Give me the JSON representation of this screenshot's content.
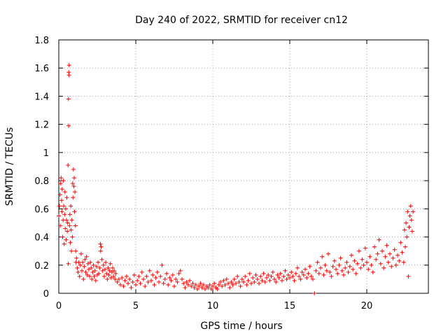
{
  "chart_data": {
    "type": "scatter",
    "title": "Day 240 of 2022, SRMTID for receiver cn12",
    "xlabel": "GPS time / hours",
    "ylabel": "SRMTID / TECUs",
    "xlim": [
      0,
      24
    ],
    "ylim": [
      0,
      1.8
    ],
    "xticks": [
      0,
      5,
      10,
      15,
      20
    ],
    "yticks": [
      0,
      0.2,
      0.4,
      0.6,
      0.8,
      1,
      1.2,
      1.4,
      1.6,
      1.8
    ],
    "xtick_labels": [
      "0",
      "5",
      "10",
      "15",
      "20"
    ],
    "ytick_labels": [
      "0",
      "0.2",
      "0.4",
      "0.6",
      "0.8",
      "1",
      "1.2",
      "1.4",
      "1.6",
      "1.8"
    ],
    "grid": true,
    "marker": "+",
    "color": "#ff0000",
    "series": [
      {
        "name": "SRMTID",
        "points": [
          [
            0.0,
            0.55
          ],
          [
            0.05,
            0.62
          ],
          [
            0.08,
            0.7
          ],
          [
            0.1,
            0.48
          ],
          [
            0.12,
            0.78
          ],
          [
            0.15,
            0.82
          ],
          [
            0.18,
            0.66
          ],
          [
            0.2,
            0.58
          ],
          [
            0.22,
            0.74
          ],
          [
            0.25,
            0.4
          ],
          [
            0.28,
            0.52
          ],
          [
            0.3,
            0.8
          ],
          [
            0.32,
            0.62
          ],
          [
            0.35,
            0.35
          ],
          [
            0.38,
            0.56
          ],
          [
            0.4,
            0.72
          ],
          [
            0.42,
            0.46
          ],
          [
            0.45,
            0.6
          ],
          [
            0.48,
            0.38
          ],
          [
            0.5,
            0.52
          ],
          [
            0.52,
            0.68
          ],
          [
            0.55,
            0.44
          ],
          [
            0.58,
            0.5
          ],
          [
            0.6,
            0.91
          ],
          [
            0.62,
            0.21
          ],
          [
            0.63,
            1.38
          ],
          [
            0.64,
            1.19
          ],
          [
            0.65,
            1.57
          ],
          [
            0.66,
            1.55
          ],
          [
            0.67,
            1.62
          ],
          [
            0.7,
            0.48
          ],
          [
            0.72,
            0.56
          ],
          [
            0.75,
            0.36
          ],
          [
            0.78,
            0.62
          ],
          [
            0.8,
            0.45
          ],
          [
            0.82,
            0.3
          ],
          [
            0.85,
            0.52
          ],
          [
            0.88,
            0.4
          ],
          [
            0.9,
            0.78
          ],
          [
            0.92,
            0.68
          ],
          [
            0.95,
            0.88
          ],
          [
            0.98,
            0.76
          ],
          [
            1.0,
            0.82
          ],
          [
            1.02,
            0.58
          ],
          [
            1.05,
            0.72
          ],
          [
            1.08,
            0.48
          ],
          [
            1.1,
            0.3
          ],
          [
            1.12,
            0.22
          ],
          [
            1.15,
            0.25
          ],
          [
            1.2,
            0.18
          ],
          [
            1.25,
            0.15
          ],
          [
            1.3,
            0.22
          ],
          [
            1.35,
            0.12
          ],
          [
            1.4,
            0.2
          ],
          [
            1.45,
            0.28
          ],
          [
            1.5,
            0.16
          ],
          [
            1.55,
            0.22
          ],
          [
            1.6,
            0.1
          ],
          [
            1.65,
            0.19
          ],
          [
            1.7,
            0.24
          ],
          [
            1.75,
            0.15
          ],
          [
            1.8,
            0.26
          ],
          [
            1.85,
            0.13
          ],
          [
            1.9,
            0.21
          ],
          [
            1.95,
            0.17
          ],
          [
            2.0,
            0.12
          ],
          [
            2.05,
            0.22
          ],
          [
            2.1,
            0.18
          ],
          [
            2.15,
            0.1
          ],
          [
            2.2,
            0.15
          ],
          [
            2.25,
            0.2
          ],
          [
            2.3,
            0.12
          ],
          [
            2.35,
            0.16
          ],
          [
            2.4,
            0.09
          ],
          [
            2.45,
            0.19
          ],
          [
            2.5,
            0.13
          ],
          [
            2.55,
            0.22
          ],
          [
            2.6,
            0.14
          ],
          [
            2.65,
            0.18
          ],
          [
            2.7,
            0.35
          ],
          [
            2.72,
            0.3
          ],
          [
            2.75,
            0.33
          ],
          [
            2.8,
            0.24
          ],
          [
            2.85,
            0.16
          ],
          [
            2.9,
            0.2
          ],
          [
            2.95,
            0.12
          ],
          [
            3.0,
            0.17
          ],
          [
            3.05,
            0.22
          ],
          [
            3.1,
            0.14
          ],
          [
            3.15,
            0.1
          ],
          [
            3.2,
            0.18
          ],
          [
            3.25,
            0.13
          ],
          [
            3.3,
            0.16
          ],
          [
            3.35,
            0.21
          ],
          [
            3.4,
            0.11
          ],
          [
            3.45,
            0.15
          ],
          [
            3.5,
            0.18
          ],
          [
            3.55,
            0.12
          ],
          [
            3.6,
            0.16
          ],
          [
            3.65,
            0.1
          ],
          [
            3.7,
            0.14
          ],
          [
            3.8,
            0.08
          ],
          [
            3.9,
            0.1
          ],
          [
            4.0,
            0.06
          ],
          [
            4.1,
            0.11
          ],
          [
            4.2,
            0.05
          ],
          [
            4.3,
            0.09
          ],
          [
            4.4,
            0.12
          ],
          [
            4.5,
            0.07
          ],
          [
            4.6,
            0.1
          ],
          [
            4.7,
            0.04
          ],
          [
            4.8,
            0.08
          ],
          [
            4.9,
            0.13
          ],
          [
            5.0,
            0.06
          ],
          [
            5.1,
            0.09
          ],
          [
            5.2,
            0.12
          ],
          [
            5.3,
            0.07
          ],
          [
            5.4,
            0.15
          ],
          [
            5.5,
            0.1
          ],
          [
            5.6,
            0.05
          ],
          [
            5.7,
            0.12
          ],
          [
            5.8,
            0.08
          ],
          [
            5.9,
            0.16
          ],
          [
            6.0,
            0.09
          ],
          [
            6.1,
            0.13
          ],
          [
            6.2,
            0.06
          ],
          [
            6.3,
            0.11
          ],
          [
            6.4,
            0.15
          ],
          [
            6.5,
            0.08
          ],
          [
            6.6,
            0.12
          ],
          [
            6.7,
            0.2
          ],
          [
            6.8,
            0.07
          ],
          [
            6.9,
            0.1
          ],
          [
            7.0,
            0.14
          ],
          [
            7.1,
            0.06
          ],
          [
            7.2,
            0.11
          ],
          [
            7.3,
            0.09
          ],
          [
            7.4,
            0.13
          ],
          [
            7.5,
            0.05
          ],
          [
            7.6,
            0.1
          ],
          [
            7.7,
            0.08
          ],
          [
            7.8,
            0.14
          ],
          [
            7.9,
            0.16
          ],
          [
            8.0,
            0.1
          ],
          [
            8.1,
            0.07
          ],
          [
            8.2,
            0.04
          ],
          [
            8.3,
            0.08
          ],
          [
            8.4,
            0.06
          ],
          [
            8.5,
            0.09
          ],
          [
            8.6,
            0.05
          ],
          [
            8.7,
            0.07
          ],
          [
            8.8,
            0.04
          ],
          [
            8.9,
            0.06
          ],
          [
            9.0,
            0.03
          ],
          [
            9.1,
            0.05
          ],
          [
            9.2,
            0.07
          ],
          [
            9.3,
            0.04
          ],
          [
            9.4,
            0.06
          ],
          [
            9.5,
            0.03
          ],
          [
            9.6,
            0.05
          ],
          [
            9.7,
            0.04
          ],
          [
            9.8,
            0.06
          ],
          [
            9.9,
            0.03
          ],
          [
            10.0,
            0.05
          ],
          [
            10.1,
            0.07
          ],
          [
            10.2,
            0.04
          ],
          [
            10.3,
            0.03
          ],
          [
            10.4,
            0.06
          ],
          [
            10.5,
            0.08
          ],
          [
            10.6,
            0.05
          ],
          [
            10.7,
            0.09
          ],
          [
            10.8,
            0.06
          ],
          [
            10.9,
            0.1
          ],
          [
            11.0,
            0.07
          ],
          [
            11.1,
            0.04
          ],
          [
            11.2,
            0.08
          ],
          [
            11.3,
            0.06
          ],
          [
            11.4,
            0.1
          ],
          [
            11.5,
            0.07
          ],
          [
            11.6,
            0.12
          ],
          [
            11.7,
            0.08
          ],
          [
            11.8,
            0.05
          ],
          [
            11.9,
            0.1
          ],
          [
            12.0,
            0.08
          ],
          [
            12.1,
            0.12
          ],
          [
            12.2,
            0.06
          ],
          [
            12.3,
            0.09
          ],
          [
            12.4,
            0.14
          ],
          [
            12.5,
            0.07
          ],
          [
            12.6,
            0.11
          ],
          [
            12.7,
            0.08
          ],
          [
            12.8,
            0.13
          ],
          [
            12.9,
            0.1
          ],
          [
            13.0,
            0.07
          ],
          [
            13.1,
            0.12
          ],
          [
            13.2,
            0.09
          ],
          [
            13.3,
            0.14
          ],
          [
            13.4,
            0.08
          ],
          [
            13.5,
            0.11
          ],
          [
            13.6,
            0.13
          ],
          [
            13.7,
            0.09
          ],
          [
            13.8,
            0.12
          ],
          [
            13.9,
            0.15
          ],
          [
            14.0,
            0.1
          ],
          [
            14.1,
            0.08
          ],
          [
            14.2,
            0.13
          ],
          [
            14.3,
            0.11
          ],
          [
            14.4,
            0.14
          ],
          [
            14.5,
            0.09
          ],
          [
            14.6,
            0.12
          ],
          [
            14.7,
            0.16
          ],
          [
            14.8,
            0.1
          ],
          [
            14.9,
            0.13
          ],
          [
            15.0,
            0.11
          ],
          [
            15.1,
            0.15
          ],
          [
            15.2,
            0.12
          ],
          [
            15.3,
            0.09
          ],
          [
            15.4,
            0.14
          ],
          [
            15.5,
            0.18
          ],
          [
            15.6,
            0.12
          ],
          [
            15.7,
            0.1
          ],
          [
            15.8,
            0.15
          ],
          [
            15.9,
            0.13
          ],
          [
            16.0,
            0.17
          ],
          [
            16.1,
            0.11
          ],
          [
            16.2,
            0.14
          ],
          [
            16.3,
            0.19
          ],
          [
            16.4,
            0.12
          ],
          [
            16.5,
            0.1
          ],
          [
            16.6,
            0.0
          ],
          [
            16.7,
            0.16
          ],
          [
            16.8,
            0.22
          ],
          [
            16.9,
            0.14
          ],
          [
            17.0,
            0.18
          ],
          [
            17.1,
            0.26
          ],
          [
            17.2,
            0.13
          ],
          [
            17.3,
            0.2
          ],
          [
            17.4,
            0.16
          ],
          [
            17.5,
            0.28
          ],
          [
            17.6,
            0.15
          ],
          [
            17.7,
            0.12
          ],
          [
            17.8,
            0.19
          ],
          [
            17.9,
            0.23
          ],
          [
            18.0,
            0.17
          ],
          [
            18.1,
            0.14
          ],
          [
            18.2,
            0.2
          ],
          [
            18.3,
            0.25
          ],
          [
            18.4,
            0.16
          ],
          [
            18.5,
            0.13
          ],
          [
            18.6,
            0.18
          ],
          [
            18.7,
            0.22
          ],
          [
            18.8,
            0.15
          ],
          [
            18.9,
            0.19
          ],
          [
            19.0,
            0.27
          ],
          [
            19.1,
            0.17
          ],
          [
            19.2,
            0.23
          ],
          [
            19.3,
            0.14
          ],
          [
            19.4,
            0.21
          ],
          [
            19.5,
            0.3
          ],
          [
            19.6,
            0.18
          ],
          [
            19.7,
            0.24
          ],
          [
            19.8,
            0.2
          ],
          [
            19.9,
            0.32
          ],
          [
            20.0,
            0.22
          ],
          [
            20.1,
            0.17
          ],
          [
            20.2,
            0.26
          ],
          [
            20.3,
            0.2
          ],
          [
            20.4,
            0.15
          ],
          [
            20.5,
            0.33
          ],
          [
            20.6,
            0.24
          ],
          [
            20.7,
            0.28
          ],
          [
            20.8,
            0.38
          ],
          [
            20.9,
            0.21
          ],
          [
            21.0,
            0.3
          ],
          [
            21.1,
            0.18
          ],
          [
            21.2,
            0.26
          ],
          [
            21.3,
            0.34
          ],
          [
            21.4,
            0.22
          ],
          [
            21.5,
            0.28
          ],
          [
            21.6,
            0.19
          ],
          [
            21.7,
            0.25
          ],
          [
            21.8,
            0.31
          ],
          [
            21.9,
            0.2
          ],
          [
            22.0,
            0.27
          ],
          [
            22.1,
            0.23
          ],
          [
            22.2,
            0.36
          ],
          [
            22.3,
            0.29
          ],
          [
            22.4,
            0.22
          ],
          [
            22.45,
            0.45
          ],
          [
            22.5,
            0.33
          ],
          [
            22.55,
            0.5
          ],
          [
            22.6,
            0.4
          ],
          [
            22.65,
            0.58
          ],
          [
            22.7,
            0.12
          ],
          [
            22.75,
            0.47
          ],
          [
            22.8,
            0.55
          ],
          [
            22.85,
            0.62
          ],
          [
            22.9,
            0.52
          ],
          [
            22.95,
            0.44
          ],
          [
            23.0,
            0.58
          ]
        ]
      }
    ]
  }
}
